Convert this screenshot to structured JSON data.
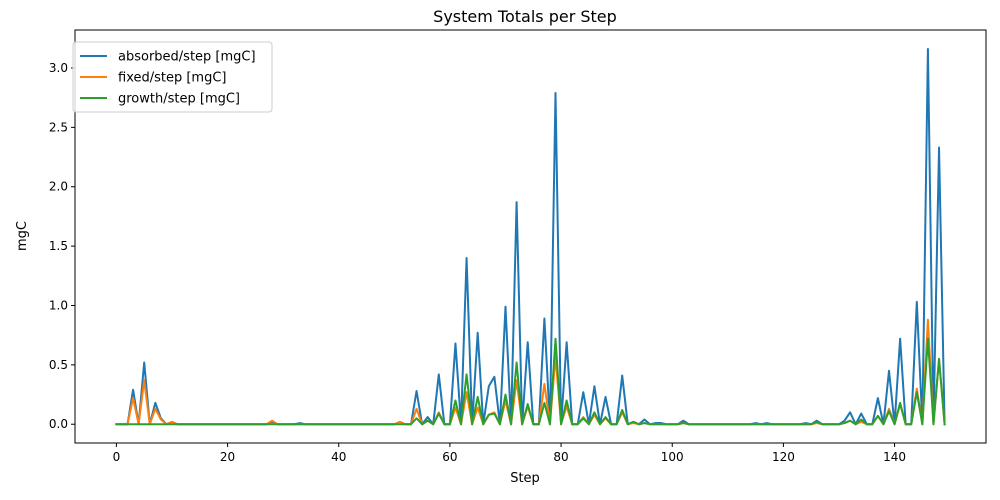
{
  "chart_data": {
    "type": "line",
    "title": "System Totals per Step",
    "xlabel": "Step",
    "ylabel": "mgC",
    "xlim": [
      -7.45,
      156.45
    ],
    "ylim": [
      -0.158,
      3.32
    ],
    "xticks": [
      0,
      20,
      40,
      60,
      80,
      100,
      120,
      140
    ],
    "yticks": [
      0.0,
      0.5,
      1.0,
      1.5,
      2.0,
      2.5,
      3.0
    ],
    "grid": false,
    "legend_position": "upper-left",
    "x": [
      0,
      1,
      2,
      3,
      4,
      5,
      6,
      7,
      8,
      9,
      10,
      11,
      12,
      13,
      14,
      15,
      16,
      17,
      18,
      19,
      20,
      21,
      22,
      23,
      24,
      25,
      26,
      27,
      28,
      29,
      30,
      31,
      32,
      33,
      34,
      35,
      36,
      37,
      38,
      39,
      40,
      41,
      42,
      43,
      44,
      45,
      46,
      47,
      48,
      49,
      50,
      51,
      52,
      53,
      54,
      55,
      56,
      57,
      58,
      59,
      60,
      61,
      62,
      63,
      64,
      65,
      66,
      67,
      68,
      69,
      70,
      71,
      72,
      73,
      74,
      75,
      76,
      77,
      78,
      79,
      80,
      81,
      82,
      83,
      84,
      85,
      86,
      87,
      88,
      89,
      90,
      91,
      92,
      93,
      94,
      95,
      96,
      97,
      98,
      99,
      100,
      101,
      102,
      103,
      104,
      105,
      106,
      107,
      108,
      109,
      110,
      111,
      112,
      113,
      114,
      115,
      116,
      117,
      118,
      119,
      120,
      121,
      122,
      123,
      124,
      125,
      126,
      127,
      128,
      129,
      130,
      131,
      132,
      133,
      134,
      135,
      136,
      137,
      138,
      139,
      140,
      141,
      142,
      143,
      144,
      145,
      146,
      147,
      148,
      149
    ],
    "series": [
      {
        "name": "absorbed/step [mgC]",
        "color": "#1f77b4",
        "values": [
          0,
          0,
          0,
          0.29,
          0,
          0.52,
          0,
          0.18,
          0.05,
          0,
          0.02,
          0,
          0,
          0,
          0,
          0,
          0,
          0,
          0,
          0,
          0,
          0,
          0,
          0,
          0,
          0,
          0,
          0,
          0.02,
          0,
          0,
          0,
          0,
          0.01,
          0,
          0,
          0,
          0,
          0,
          0,
          0,
          0,
          0,
          0,
          0,
          0,
          0,
          0,
          0,
          0,
          0,
          0.02,
          0,
          0,
          0.28,
          0,
          0.06,
          0,
          0.42,
          0,
          0,
          0.68,
          0,
          1.4,
          0,
          0.77,
          0,
          0.32,
          0.4,
          0,
          0.99,
          0,
          1.87,
          0,
          0.69,
          0,
          0,
          0.89,
          0,
          2.79,
          0,
          0.69,
          0,
          0,
          0.27,
          0,
          0.32,
          0,
          0.23,
          0,
          0,
          0.41,
          0,
          0.02,
          0,
          0.04,
          0,
          0.01,
          0.01,
          0,
          0,
          0,
          0.03,
          0,
          0,
          0,
          0,
          0,
          0,
          0,
          0,
          0,
          0,
          0,
          0,
          0.01,
          0,
          0.01,
          0,
          0,
          0,
          0,
          0,
          0,
          0.01,
          0,
          0.03,
          0,
          0,
          0,
          0,
          0.03,
          0.1,
          0,
          0.09,
          0,
          0,
          0.22,
          0,
          0.45,
          0,
          0.72,
          0,
          0,
          1.03,
          0,
          3.16,
          0,
          2.33,
          0
        ]
      },
      {
        "name": "fixed/step [mgC]",
        "color": "#ff7f0e",
        "values": [
          0,
          0,
          0,
          0.22,
          0,
          0.37,
          0,
          0.13,
          0.04,
          0,
          0.02,
          0,
          0,
          0,
          0,
          0,
          0,
          0,
          0,
          0,
          0,
          0,
          0,
          0,
          0,
          0,
          0,
          0,
          0.03,
          0,
          0,
          0,
          0,
          0,
          0,
          0,
          0,
          0,
          0,
          0,
          0,
          0,
          0,
          0,
          0,
          0,
          0,
          0,
          0,
          0,
          0,
          0.02,
          0,
          0,
          0.13,
          0,
          0.03,
          0,
          0.1,
          0,
          0,
          0.14,
          0,
          0.27,
          0,
          0.14,
          0,
          0.08,
          0.1,
          0,
          0.2,
          0,
          0.37,
          0,
          0.15,
          0,
          0,
          0.34,
          0,
          0.57,
          0,
          0.15,
          0,
          0,
          0.06,
          0,
          0.08,
          0,
          0.05,
          0,
          0,
          0.1,
          0,
          0.01,
          0,
          0.01,
          0,
          0,
          0,
          0,
          0,
          0,
          0.01,
          0,
          0,
          0,
          0,
          0,
          0,
          0,
          0,
          0,
          0,
          0,
          0,
          0,
          0,
          0,
          0,
          0,
          0,
          0,
          0,
          0,
          0,
          0,
          0.01,
          0,
          0,
          0,
          0,
          0.01,
          0.03,
          0,
          0.02,
          0,
          0,
          0.07,
          0,
          0.13,
          0,
          0.17,
          0,
          0,
          0.3,
          0,
          0.88,
          0,
          0.55,
          0
        ]
      },
      {
        "name": "growth/step [mgC]",
        "color": "#2ca02c",
        "values": [
          0,
          0,
          0,
          0,
          0,
          0,
          0,
          0,
          0,
          0,
          0,
          0,
          0,
          0,
          0,
          0,
          0,
          0,
          0,
          0,
          0,
          0,
          0,
          0,
          0,
          0,
          0,
          0,
          0,
          0,
          0,
          0,
          0,
          0,
          0,
          0,
          0,
          0,
          0,
          0,
          0,
          0,
          0,
          0,
          0,
          0,
          0,
          0,
          0,
          0,
          0,
          0,
          0,
          0,
          0.05,
          0,
          0.03,
          0,
          0.09,
          0,
          0,
          0.2,
          0,
          0.42,
          0,
          0.23,
          0,
          0.08,
          0.09,
          0,
          0.25,
          0,
          0.52,
          0,
          0.17,
          0,
          0,
          0.18,
          0,
          0.72,
          0,
          0.2,
          0,
          0,
          0.05,
          0,
          0.1,
          0,
          0.06,
          0,
          0,
          0.12,
          0,
          0.02,
          0,
          0.01,
          0,
          0,
          0,
          0,
          0,
          0,
          0.01,
          0,
          0,
          0,
          0,
          0,
          0,
          0,
          0,
          0,
          0,
          0,
          0,
          0,
          0,
          0,
          0,
          0,
          0,
          0,
          0,
          0,
          0,
          0,
          0.02,
          0,
          0,
          0,
          0,
          0.01,
          0.03,
          0,
          0.04,
          0,
          0,
          0.07,
          0,
          0.11,
          0,
          0.18,
          0,
          0,
          0.27,
          0,
          0.72,
          0,
          0.55,
          0
        ]
      }
    ]
  }
}
